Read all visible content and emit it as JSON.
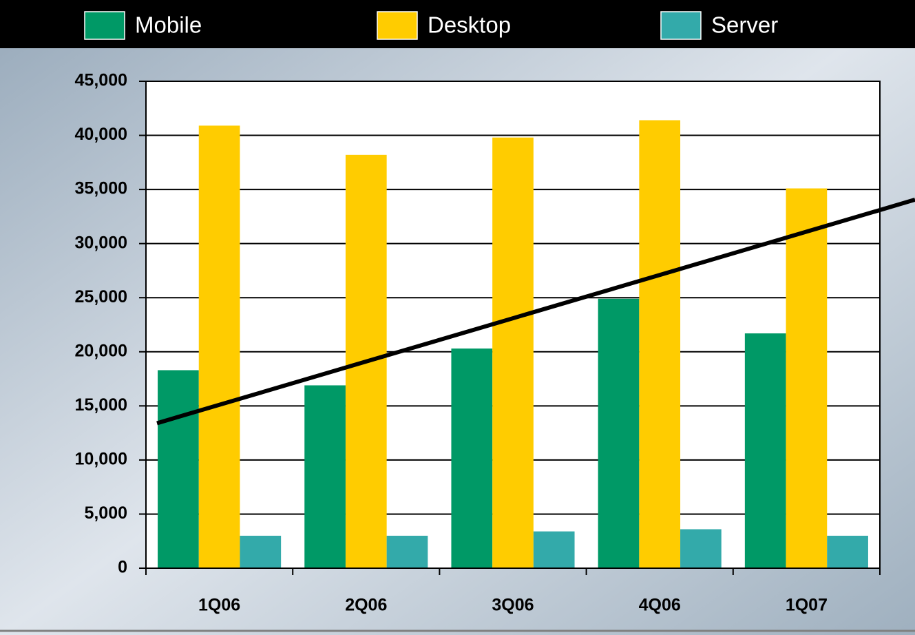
{
  "chart_data": {
    "type": "bar",
    "categories": [
      "1Q06",
      "2Q06",
      "3Q06",
      "4Q06",
      "1Q07"
    ],
    "series": [
      {
        "name": "Mobile",
        "color": "#009966",
        "values": [
          18300,
          16900,
          20300,
          24900,
          21700
        ]
      },
      {
        "name": "Desktop",
        "color": "#ffcc00",
        "values": [
          40900,
          38200,
          39800,
          41400,
          35100
        ]
      },
      {
        "name": "Server",
        "color": "#33aaaa",
        "values": [
          3000,
          3000,
          3400,
          3600,
          3000
        ]
      }
    ],
    "trend": {
      "color": "#000000",
      "values": [
        15100,
        19100,
        23100,
        27100,
        31100
      ]
    },
    "ylim": [
      0,
      45000
    ],
    "yticks": [
      0,
      {
        "value": 5000,
        "label": "5,000"
      },
      {
        "value": 10000,
        "label": "10,000"
      },
      {
        "value": 15000,
        "label": "15,000"
      },
      {
        "value": 20000,
        "label": "20,000"
      },
      {
        "value": 25000,
        "label": "25,000"
      },
      {
        "value": 30000,
        "label": "30,000"
      },
      {
        "value": 35000,
        "label": "35,000"
      },
      {
        "value": 40000,
        "label": "40,000"
      },
      {
        "value": 45000,
        "label": "45,000"
      }
    ],
    "grid": true,
    "legend": "top"
  }
}
